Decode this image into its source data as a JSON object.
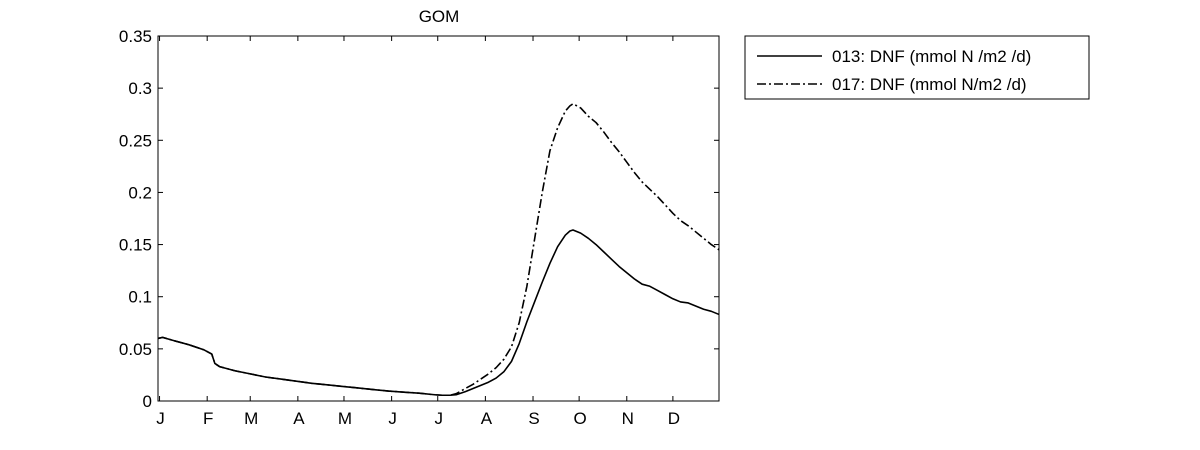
{
  "colors": {
    "background": "#ffffff",
    "line": "#000000"
  },
  "chart_data": {
    "type": "line",
    "title": "GOM",
    "xlabel": "",
    "ylabel": "",
    "x_tick_labels": [
      "J",
      "F",
      "M",
      "A",
      "M",
      "J",
      "J",
      "A",
      "S",
      "O",
      "N",
      "D"
    ],
    "x_tick_days": [
      1,
      32,
      60,
      91,
      121,
      152,
      182,
      213,
      244,
      274,
      305,
      335
    ],
    "xlim": [
      0,
      365
    ],
    "ylim": [
      0,
      0.35
    ],
    "y_ticks": [
      0,
      0.05,
      0.1,
      0.15,
      0.2,
      0.25,
      0.3,
      0.35
    ],
    "y_tick_labels": [
      "0",
      "0.05",
      "0.1",
      "0.15",
      "0.2",
      "0.25",
      "0.3",
      "0.35"
    ],
    "legend_position": "outside-top-right",
    "grid": false,
    "series": [
      {
        "name": "013: DNF (mmol N /m2 /d)",
        "style": "solid",
        "x": [
          0,
          3,
          10,
          20,
          30,
          35,
          37,
          40,
          50,
          60,
          70,
          80,
          90,
          100,
          110,
          120,
          130,
          140,
          150,
          160,
          170,
          180,
          185,
          190,
          194,
          200,
          205,
          210,
          215,
          220,
          225,
          230,
          235,
          240,
          245,
          250,
          255,
          260,
          265,
          268,
          270,
          275,
          280,
          285,
          290,
          295,
          300,
          305,
          310,
          315,
          320,
          325,
          330,
          335,
          340,
          345,
          350,
          355,
          360,
          365
        ],
        "y": [
          0.06,
          0.061,
          0.058,
          0.054,
          0.049,
          0.045,
          0.036,
          0.033,
          0.029,
          0.026,
          0.023,
          0.021,
          0.019,
          0.017,
          0.0155,
          0.014,
          0.0125,
          0.011,
          0.0095,
          0.0085,
          0.0075,
          0.006,
          0.0055,
          0.0055,
          0.006,
          0.009,
          0.012,
          0.015,
          0.018,
          0.022,
          0.028,
          0.038,
          0.055,
          0.076,
          0.095,
          0.114,
          0.132,
          0.148,
          0.159,
          0.163,
          0.164,
          0.161,
          0.156,
          0.15,
          0.143,
          0.136,
          0.129,
          0.123,
          0.117,
          0.112,
          0.11,
          0.106,
          0.102,
          0.098,
          0.095,
          0.094,
          0.091,
          0.088,
          0.086,
          0.083
        ]
      },
      {
        "name": "017: DNF (mmol N/m2 /d)",
        "style": "dash-dot",
        "x": [
          0,
          3,
          10,
          20,
          30,
          35,
          37,
          40,
          50,
          60,
          70,
          80,
          90,
          100,
          110,
          120,
          130,
          140,
          150,
          160,
          170,
          180,
          185,
          190,
          194,
          200,
          205,
          210,
          215,
          220,
          225,
          230,
          235,
          240,
          245,
          250,
          255,
          260,
          265,
          268,
          270,
          275,
          280,
          285,
          290,
          295,
          300,
          305,
          310,
          315,
          320,
          325,
          330,
          335,
          340,
          345,
          350,
          355,
          360,
          365
        ],
        "y": [
          0.06,
          0.061,
          0.058,
          0.054,
          0.049,
          0.045,
          0.036,
          0.033,
          0.029,
          0.026,
          0.023,
          0.021,
          0.019,
          0.017,
          0.0155,
          0.014,
          0.0125,
          0.011,
          0.0095,
          0.0085,
          0.0075,
          0.006,
          0.0055,
          0.0055,
          0.007,
          0.012,
          0.016,
          0.021,
          0.026,
          0.032,
          0.04,
          0.052,
          0.075,
          0.11,
          0.155,
          0.2,
          0.24,
          0.262,
          0.278,
          0.283,
          0.285,
          0.281,
          0.273,
          0.267,
          0.258,
          0.248,
          0.239,
          0.229,
          0.219,
          0.21,
          0.203,
          0.196,
          0.188,
          0.18,
          0.173,
          0.168,
          0.162,
          0.156,
          0.15,
          0.145
        ]
      }
    ]
  }
}
